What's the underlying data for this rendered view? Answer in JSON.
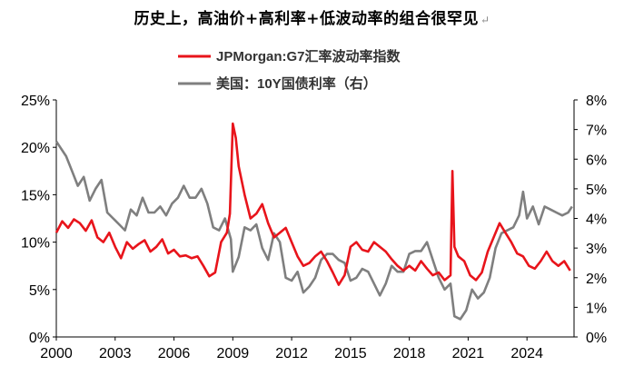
{
  "title": "历史上，高油价+高利率+低波动率的组合很罕见",
  "title_mark": "↵",
  "chart_data": {
    "type": "line",
    "legend_position": "top-center",
    "grid": false,
    "x_ticks": [
      "2000",
      "2003",
      "2006",
      "2009",
      "2012",
      "2015",
      "2018",
      "2021",
      "2024"
    ],
    "x_range": [
      2000.0,
      2026.4
    ],
    "y_left": {
      "range": [
        0,
        25
      ],
      "ticks": [
        "0%",
        "5%",
        "10%",
        "15%",
        "20%",
        "25%"
      ]
    },
    "y_right": {
      "range": [
        0,
        8
      ],
      "ticks": [
        "0%",
        "1%",
        "2%",
        "3%",
        "4%",
        "5%",
        "6%",
        "7%",
        "8%"
      ]
    },
    "series": [
      {
        "name": "JPMorgan:G7汇率波动率指数",
        "axis": "left",
        "color": "#e8141b",
        "x": [
          2000.0,
          2000.3,
          2000.6,
          2000.9,
          2001.2,
          2001.5,
          2001.8,
          2002.1,
          2002.4,
          2002.7,
          2003.0,
          2003.3,
          2003.6,
          2003.9,
          2004.2,
          2004.5,
          2004.8,
          2005.1,
          2005.4,
          2005.7,
          2006.0,
          2006.3,
          2006.6,
          2006.9,
          2007.2,
          2007.5,
          2007.8,
          2008.1,
          2008.4,
          2008.7,
          2008.85,
          2009.0,
          2009.15,
          2009.3,
          2009.6,
          2009.9,
          2010.2,
          2010.5,
          2010.8,
          2011.1,
          2011.4,
          2011.7,
          2012.0,
          2012.3,
          2012.6,
          2012.9,
          2013.2,
          2013.5,
          2013.8,
          2014.1,
          2014.4,
          2014.7,
          2015.0,
          2015.3,
          2015.6,
          2015.9,
          2016.2,
          2016.5,
          2016.8,
          2017.1,
          2017.4,
          2017.7,
          2018.0,
          2018.3,
          2018.6,
          2018.9,
          2019.2,
          2019.5,
          2019.8,
          2020.1,
          2020.2,
          2020.3,
          2020.5,
          2020.8,
          2021.1,
          2021.4,
          2021.7,
          2022.0,
          2022.3,
          2022.6,
          2022.9,
          2023.2,
          2023.5,
          2023.8,
          2024.1,
          2024.4,
          2024.7,
          2025.0,
          2025.3,
          2025.6,
          2025.9,
          2026.2
        ],
        "values": [
          11.0,
          12.2,
          11.5,
          12.4,
          12.0,
          11.2,
          12.3,
          10.5,
          10.0,
          11.0,
          9.5,
          8.3,
          10.0,
          9.3,
          9.8,
          10.2,
          9.0,
          9.5,
          10.3,
          8.8,
          9.2,
          8.5,
          8.6,
          8.3,
          8.5,
          7.5,
          6.4,
          6.8,
          10.0,
          11.0,
          13.0,
          22.5,
          21.0,
          18.0,
          15.0,
          12.5,
          13.0,
          14.0,
          12.0,
          10.5,
          11.0,
          11.5,
          10.0,
          8.5,
          7.5,
          7.8,
          8.5,
          9.0,
          8.0,
          6.8,
          5.5,
          6.5,
          9.5,
          10.0,
          9.2,
          9.0,
          10.0,
          9.5,
          9.0,
          8.2,
          7.5,
          7.0,
          7.5,
          7.0,
          8.0,
          7.2,
          6.5,
          6.8,
          6.0,
          6.5,
          17.5,
          9.5,
          8.5,
          8.0,
          6.5,
          6.0,
          6.8,
          9.0,
          10.5,
          12.0,
          11.0,
          10.0,
          8.8,
          8.5,
          7.5,
          7.2,
          8.0,
          9.0,
          8.0,
          7.5,
          8.0,
          7.0
        ]
      },
      {
        "name": "美国：10Y国债利率（右）",
        "axis": "right",
        "color": "#7f7f7f",
        "x": [
          2000.0,
          2000.2,
          2000.5,
          2000.8,
          2001.1,
          2001.4,
          2001.7,
          2002.0,
          2002.3,
          2002.6,
          2002.9,
          2003.2,
          2003.5,
          2003.8,
          2004.1,
          2004.4,
          2004.7,
          2005.0,
          2005.3,
          2005.6,
          2005.9,
          2006.2,
          2006.5,
          2006.8,
          2007.1,
          2007.4,
          2007.7,
          2008.0,
          2008.3,
          2008.6,
          2008.9,
          2009.0,
          2009.3,
          2009.6,
          2009.9,
          2010.2,
          2010.5,
          2010.8,
          2011.1,
          2011.4,
          2011.7,
          2012.0,
          2012.3,
          2012.6,
          2012.9,
          2013.2,
          2013.5,
          2013.8,
          2014.1,
          2014.4,
          2014.7,
          2015.0,
          2015.3,
          2015.6,
          2015.9,
          2016.2,
          2016.5,
          2016.8,
          2017.1,
          2017.4,
          2017.7,
          2018.0,
          2018.3,
          2018.6,
          2018.9,
          2019.2,
          2019.5,
          2019.8,
          2020.1,
          2020.3,
          2020.6,
          2020.9,
          2021.2,
          2021.5,
          2021.8,
          2022.1,
          2022.4,
          2022.7,
          2023.0,
          2023.3,
          2023.6,
          2023.8,
          2024.0,
          2024.3,
          2024.6,
          2024.9,
          2025.2,
          2025.5,
          2025.8,
          2026.1,
          2026.3
        ],
        "values": [
          6.6,
          6.4,
          6.1,
          5.6,
          5.1,
          5.4,
          4.6,
          5.0,
          5.3,
          4.2,
          4.0,
          3.8,
          3.6,
          4.3,
          4.1,
          4.7,
          4.2,
          4.2,
          4.4,
          4.1,
          4.5,
          4.7,
          5.1,
          4.7,
          4.7,
          5.0,
          4.5,
          3.7,
          3.6,
          4.0,
          3.3,
          2.2,
          2.7,
          3.7,
          3.6,
          3.8,
          3.0,
          2.6,
          3.5,
          3.2,
          2.0,
          1.9,
          2.2,
          1.5,
          1.7,
          2.0,
          2.6,
          2.8,
          2.8,
          2.6,
          2.5,
          1.9,
          2.0,
          2.3,
          2.2,
          1.8,
          1.4,
          1.8,
          2.4,
          2.2,
          2.2,
          2.8,
          2.9,
          2.9,
          3.2,
          2.6,
          2.0,
          1.6,
          1.8,
          0.7,
          0.6,
          0.9,
          1.6,
          1.3,
          1.5,
          2.0,
          3.0,
          3.5,
          3.6,
          3.7,
          4.1,
          4.9,
          4.0,
          4.4,
          3.8,
          4.4,
          4.3,
          4.2,
          4.1,
          4.2,
          4.4
        ]
      }
    ]
  }
}
